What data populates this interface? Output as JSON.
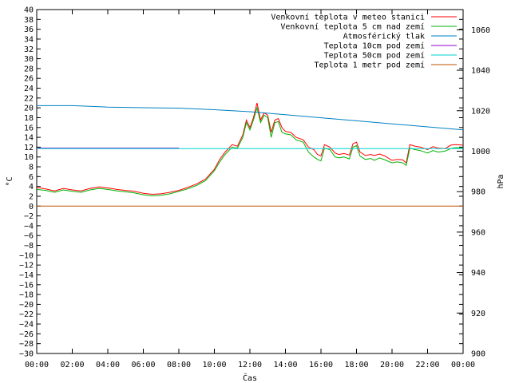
{
  "chart_data": {
    "type": "line",
    "xlabel": "Čas",
    "ylabel_left": "°C",
    "ylabel_right": "hPa",
    "x_range": [
      "00:00",
      "00:00"
    ],
    "x_ticks": [
      "00:00",
      "02:00",
      "04:00",
      "06:00",
      "08:00",
      "10:00",
      "12:00",
      "14:00",
      "16:00",
      "18:00",
      "20:00",
      "22:00",
      "00:00"
    ],
    "y_left_range": [
      -30,
      40
    ],
    "y_left_step": 2,
    "y_right_range": [
      900,
      1070
    ],
    "y_right_ticks": [
      900,
      920,
      940,
      960,
      980,
      1000,
      1020,
      1040,
      1060
    ],
    "grid": false,
    "legend_position": "top-right",
    "series": [
      {
        "name": "Venkovní teplota v meteo stanici",
        "color": "#ff0000",
        "axis": "left",
        "x_hours": [
          0,
          0.5,
          1,
          1.5,
          2,
          2.5,
          3,
          3.5,
          4,
          4.5,
          5,
          5.5,
          6,
          6.5,
          7,
          7.5,
          8,
          8.5,
          9,
          9.5,
          10,
          10.3,
          10.6,
          11,
          11.3,
          11.6,
          11.8,
          12,
          12.2,
          12.4,
          12.6,
          12.8,
          13,
          13.2,
          13.4,
          13.6,
          13.8,
          14,
          14.3,
          14.6,
          15,
          15.3,
          15.6,
          15.8,
          16,
          16.2,
          16.5,
          16.8,
          17,
          17.3,
          17.6,
          17.8,
          18,
          18.2,
          18.5,
          18.8,
          19,
          19.3,
          19.6,
          20,
          20.3,
          20.6,
          20.8,
          21,
          21.3,
          21.6,
          22,
          22.3,
          22.6,
          23,
          23.3,
          23.6,
          24
        ],
        "values": [
          3.8,
          3.5,
          3.1,
          3.6,
          3.3,
          3.1,
          3.6,
          3.9,
          3.7,
          3.4,
          3.2,
          3.0,
          2.6,
          2.4,
          2.5,
          2.8,
          3.2,
          3.8,
          4.5,
          5.5,
          7.5,
          9.5,
          11.0,
          12.5,
          12.2,
          14.5,
          17.5,
          16.0,
          18.0,
          21.0,
          17.5,
          19.0,
          18.5,
          15.0,
          17.5,
          17.8,
          16.0,
          15.2,
          15.0,
          14.0,
          13.5,
          12.0,
          11.5,
          10.5,
          10.2,
          12.5,
          12.0,
          10.8,
          10.5,
          10.7,
          10.4,
          12.7,
          13.0,
          11.0,
          10.3,
          10.5,
          10.3,
          10.6,
          10.2,
          9.3,
          9.5,
          9.4,
          8.8,
          12.5,
          12.2,
          12.0,
          11.5,
          12.1,
          11.8,
          11.7,
          12.4,
          12.5,
          12.4
        ]
      },
      {
        "name": "Venkovní teplota 5 cm nad zemí",
        "color": "#00b000",
        "axis": "left",
        "x_hours": [
          0,
          0.5,
          1,
          1.5,
          2,
          2.5,
          3,
          3.5,
          4,
          4.5,
          5,
          5.5,
          6,
          6.5,
          7,
          7.5,
          8,
          8.5,
          9,
          9.5,
          10,
          10.3,
          10.6,
          11,
          11.3,
          11.6,
          11.8,
          12,
          12.2,
          12.4,
          12.6,
          12.8,
          13,
          13.2,
          13.4,
          13.6,
          13.8,
          14,
          14.3,
          14.6,
          15,
          15.3,
          15.6,
          15.8,
          16,
          16.2,
          16.5,
          16.8,
          17,
          17.3,
          17.6,
          17.8,
          18,
          18.2,
          18.5,
          18.8,
          19,
          19.3,
          19.6,
          20,
          20.3,
          20.6,
          20.8,
          21,
          21.3,
          21.6,
          22,
          22.3,
          22.6,
          23,
          23.3,
          23.6,
          24
        ],
        "values": [
          3.4,
          3.2,
          2.8,
          3.3,
          3.0,
          2.8,
          3.3,
          3.6,
          3.4,
          3.1,
          2.9,
          2.7,
          2.3,
          2.1,
          2.2,
          2.5,
          3.0,
          3.5,
          4.2,
          5.2,
          7.2,
          9.0,
          10.5,
          12.0,
          11.8,
          14.0,
          17.0,
          15.5,
          17.5,
          20.0,
          17.0,
          18.5,
          18.0,
          14.0,
          17.0,
          17.2,
          15.0,
          14.7,
          14.5,
          13.5,
          13.0,
          11.0,
          10.0,
          9.5,
          9.2,
          11.8,
          11.5,
          10.0,
          9.8,
          10.0,
          9.6,
          12.0,
          12.3,
          10.2,
          9.5,
          9.7,
          9.3,
          9.8,
          9.4,
          8.8,
          9.0,
          8.8,
          8.3,
          11.8,
          11.5,
          11.3,
          10.8,
          11.3,
          11.0,
          11.2,
          11.7,
          11.9,
          11.8
        ]
      },
      {
        "name": "Atmosférický tlak",
        "color": "#0080c0",
        "axis": "right",
        "x_hours": [
          0,
          2,
          4,
          6,
          8,
          10,
          12,
          14,
          16,
          18,
          20,
          22,
          24
        ],
        "values": [
          1022.5,
          1022.5,
          1021.8,
          1021.5,
          1021.3,
          1020.5,
          1019.5,
          1018.0,
          1016.5,
          1015.0,
          1013.5,
          1012.0,
          1010.5
        ]
      },
      {
        "name": "Teplota 10cm pod zemí",
        "color": "#9000d0",
        "axis": "left",
        "x_hours": [
          0,
          8,
          8.01,
          24
        ],
        "values": [
          11.8,
          11.8,
          null,
          null
        ]
      },
      {
        "name": "Teplota 50cm pod zemí",
        "color": "#00d0d0",
        "axis": "left",
        "x_hours": [
          0,
          24
        ],
        "values": [
          11.7,
          11.7
        ]
      },
      {
        "name": "Teplota 1 metr pod zemí",
        "color": "#c05000",
        "axis": "left",
        "x_hours": [
          0,
          24
        ],
        "values": [
          0,
          0
        ]
      }
    ]
  }
}
